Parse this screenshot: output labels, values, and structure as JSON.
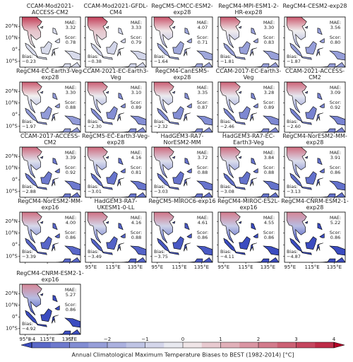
{
  "panels": [
    {
      "title": "CCAM-Mod2021-ACCESS-CM2",
      "mae": "3.32",
      "score": "0.78",
      "bias": "−0.23"
    },
    {
      "title": "CCAM-Mod2021-GFDL-CM4",
      "mae": "3.33",
      "score": "0.79",
      "bias": "−0.38"
    },
    {
      "title": "RegCM5-CMCC-ESM2-exp28",
      "mae": "4.07",
      "score": "0.71",
      "bias": "−1.64"
    },
    {
      "title": "RegCM4-MPI-ESM1-2-HR-exp28",
      "mae": "3.30",
      "score": "0.83",
      "bias": "−1.81"
    },
    {
      "title": "RegCM4-CESM2-exp28",
      "mae": "3.56",
      "score": "0.80",
      "bias": "−1.87"
    },
    {
      "title": "RegCM4-EC-Earth3-Veg-exp28",
      "mae": "3.30",
      "score": "0.88",
      "bias": "−1.97"
    },
    {
      "title": "CCAM-2021-EC-Earth3-Veg",
      "mae": "3.10",
      "score": "0.89",
      "bias": "−2.30"
    },
    {
      "title": "RegCM4-CanESM5-exp28",
      "mae": "3.35",
      "score": "0.87",
      "bias": "−2.32"
    },
    {
      "title": "CCAM-2017-EC-Earth3-Veg",
      "mae": "3.28",
      "score": "0.89",
      "bias": "−2.46"
    },
    {
      "title": "CCAM-2021-ACCESS-CM2",
      "mae": "3.09",
      "score": "0.92",
      "bias": "−2.60"
    },
    {
      "title": "CCAM-2017-ACCESS-CM2",
      "mae": "3.39",
      "score": "0.92",
      "bias": "−2.88"
    },
    {
      "title": "RegCM5-EC-Earth3-Veg-exp28",
      "mae": "4.16",
      "score": "0.81",
      "bias": "−3.01"
    },
    {
      "title": "HadGEM3-RA7-NorESM2-MM",
      "mae": "3.72",
      "score": "0.88",
      "bias": "−3.03"
    },
    {
      "title": "HadGEM3-RA7-EC-Earth3-Veg",
      "mae": "3.84",
      "score": "0.88",
      "bias": "−3.08"
    },
    {
      "title": "RegCM4-NorESM2-MM-exp28",
      "mae": "3.91",
      "score": "0.86",
      "bias": "−3.13"
    },
    {
      "title": "RegCM4-NorESM2-MM-exp16",
      "mae": "4.00",
      "score": "0.86",
      "bias": "−3.39"
    },
    {
      "title": "HadGEM3-RA7-UKESM1-0-LL",
      "mae": "4.16",
      "score": "0.88",
      "bias": "−3.49"
    },
    {
      "title": "RegCM5-MIROC6-exp16",
      "mae": "4.61",
      "score": "0.86",
      "bias": "−3.75"
    },
    {
      "title": "RegCM4-MIROC-ES2L-exp16",
      "mae": "4.55",
      "score": "0.86",
      "bias": "−4.11"
    },
    {
      "title": "RegCM4-CNRM-ESM2-1-exp28",
      "mae": "5.22",
      "score": "0.86",
      "bias": "−4.87"
    },
    {
      "title": "RegCM4-CNRM-ESM2-1-exp16",
      "mae": "5.27",
      "score": "0.86",
      "bias": "−4.92"
    }
  ],
  "stat_labels": {
    "mae": "MAE:",
    "score": "Scor:",
    "bias": "Bias:"
  },
  "lat_ticks": [
    {
      "value": 20,
      "label": "20°N"
    },
    {
      "value": 10,
      "label": "10°N"
    },
    {
      "value": 0,
      "label": "0°"
    },
    {
      "value": -10,
      "label": "10°S"
    }
  ],
  "lon_ticks": [
    {
      "value": 95,
      "label": "95°E"
    },
    {
      "value": 115,
      "label": "115°E"
    },
    {
      "value": 135,
      "label": "135°E"
    }
  ],
  "colorbar": {
    "label": "Annual Climatological Maximum Temperature Biases to BEST (1982-2014) [°C]",
    "ticks": [
      {
        "value": -4,
        "label": "−4"
      },
      {
        "value": -3,
        "label": "−3"
      },
      {
        "value": -2,
        "label": "−2"
      },
      {
        "value": -1,
        "label": "−1"
      },
      0,
      1,
      2,
      3,
      4
    ]
  }
}
